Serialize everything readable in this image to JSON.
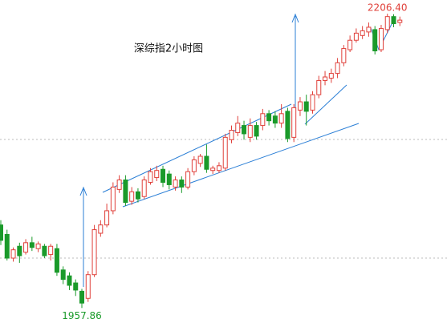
{
  "chart_data": {
    "type": "candlestick",
    "title": "深综指2小时图",
    "up_color": "#e0403a",
    "down_color": "#1a9a2a",
    "ylim": [
      1941.8,
      2218
    ],
    "annotations": [
      {
        "text": "2206.40",
        "value": 2206.4,
        "color": "#e0403a"
      },
      {
        "text": "1957.86",
        "value": 1957.86,
        "color": "#1a9a2a"
      }
    ],
    "open": [
      2028,
      2020,
      2000,
      2010,
      2005,
      2013,
      2008,
      2010,
      2003,
      2008,
      1990,
      1985,
      1979,
      1972,
      1966,
      1986,
      2021,
      2028,
      2040,
      2058,
      2066,
      2048,
      2056,
      2052,
      2064,
      2068,
      2075,
      2071,
      2060,
      2066,
      2060,
      2073,
      2080,
      2086,
      2074,
      2074,
      2076,
      2100,
      2106,
      2112,
      2102,
      2112,
      2112,
      2122,
      2120,
      2114,
      2124,
      2102,
      2125,
      2132,
      2125,
      2138,
      2150,
      2152,
      2156,
      2165,
      2176,
      2184,
      2188,
      2191,
      2193,
      2176,
      2193,
      2204,
      2199
    ],
    "high": [
      2032,
      2024,
      2009,
      2013,
      2016,
      2018,
      2014,
      2012,
      2012,
      2012,
      1993,
      1988,
      1982,
      1974,
      1989,
      2028,
      2032,
      2046,
      2064,
      2070,
      2070,
      2060,
      2059,
      2069,
      2076,
      2078,
      2078,
      2074,
      2069,
      2069,
      2076,
      2086,
      2088,
      2096,
      2078,
      2081,
      2105,
      2112,
      2120,
      2116,
      2118,
      2115,
      2126,
      2125,
      2124,
      2130,
      2127,
      2130,
      2136,
      2138,
      2141,
      2154,
      2158,
      2160,
      2169,
      2180,
      2188,
      2194,
      2196,
      2199,
      2196,
      2197,
      2206.4,
      2206,
      2204
    ],
    "low": [
      2011,
      1998,
      1997,
      1996,
      2003,
      2006,
      2005,
      2000,
      1998,
      1985,
      1978,
      1973,
      1968,
      1957.86,
      1963,
      1984,
      2018,
      2026,
      2037,
      2055,
      2044,
      2045,
      2047,
      2050,
      2062,
      2065,
      2060,
      2058,
      2057,
      2055,
      2058,
      2070,
      2077,
      2072,
      2071,
      2072,
      2074,
      2097,
      2103,
      2100,
      2098,
      2100,
      2108,
      2112,
      2110,
      2110,
      2098,
      2098,
      2120,
      2112,
      2122,
      2135,
      2146,
      2148,
      2152,
      2162,
      2174,
      2182,
      2185,
      2187,
      2172,
      2174,
      2190,
      2195,
      2196
    ],
    "close": [
      2015,
      2000,
      2007,
      2002,
      2013,
      2009,
      2012,
      2002,
      2010,
      1988,
      1982,
      1977,
      1973,
      1962,
      1986,
      2024,
      2028,
      2040,
      2060,
      2066,
      2047,
      2056,
      2050,
      2066,
      2073,
      2074,
      2064,
      2062,
      2066,
      2060,
      2073,
      2083,
      2086,
      2075,
      2076,
      2078,
      2102,
      2108,
      2114,
      2105,
      2112,
      2103,
      2122,
      2116,
      2114,
      2122,
      2101,
      2127,
      2132,
      2124,
      2138,
      2150,
      2153,
      2156,
      2165,
      2177,
      2184,
      2190,
      2192,
      2195,
      2175,
      2194,
      2204,
      2198,
      2201
    ]
  }
}
